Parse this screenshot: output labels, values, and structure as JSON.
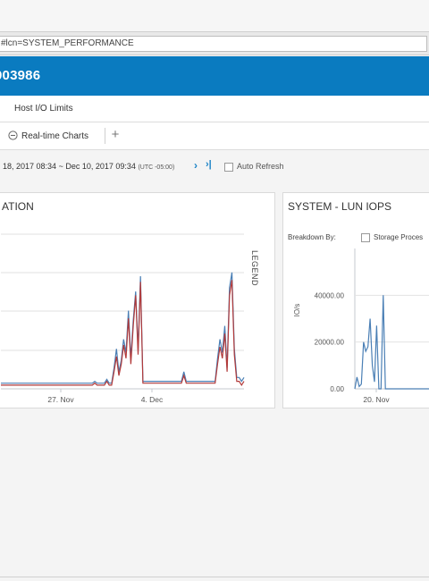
{
  "browser": {
    "url_fragment": "#lcn=SYSTEM_PERFORMANCE"
  },
  "header": {
    "title_fragment": "003986"
  },
  "subnav": {
    "tab_label": "Host I/O Limits"
  },
  "toolbar": {
    "realtime_label": "Real-time Charts",
    "add_label": "+"
  },
  "timerange": {
    "start": "18, 2017 08:34",
    "separator": "~",
    "end": "Dec 10, 2017 09:34",
    "timezone": "(UTC -05:00)",
    "next_symbol": "›",
    "last_symbol": "›|",
    "auto_refresh_label": "Auto Refresh"
  },
  "chart_data": [
    {
      "type": "line",
      "title": "ATION",
      "legend_label": "LEGEND",
      "x_ticks": [
        "27. Nov",
        "4. Dec"
      ],
      "series": [
        {
          "color": "#4a7fb5",
          "values": [
            2,
            2,
            2,
            2,
            2,
            2,
            2,
            2,
            2,
            2,
            2,
            2,
            2,
            2,
            2,
            2,
            2,
            2,
            2,
            2,
            2,
            2,
            2,
            2,
            2,
            2,
            2,
            2,
            2,
            2,
            2,
            2,
            2,
            2,
            2,
            2,
            2,
            2,
            2,
            3,
            2,
            2,
            2,
            2,
            4,
            2,
            2,
            10,
            20,
            8,
            14,
            25,
            18,
            40,
            15,
            35,
            50,
            20,
            58,
            3,
            3,
            3,
            3,
            3,
            3,
            3,
            3,
            3,
            3,
            3,
            3,
            3,
            3,
            3,
            3,
            3,
            8,
            3,
            3,
            3,
            3,
            3,
            3,
            3,
            3,
            3,
            3,
            3,
            3,
            3,
            15,
            25,
            18,
            32,
            10,
            52,
            60,
            20,
            5,
            5,
            3,
            5
          ]
        },
        {
          "color": "#b23a3a",
          "values": [
            1,
            1,
            1,
            1,
            1,
            1,
            1,
            1,
            1,
            1,
            1,
            1,
            1,
            1,
            1,
            1,
            1,
            1,
            1,
            1,
            1,
            1,
            1,
            1,
            1,
            1,
            1,
            1,
            1,
            1,
            1,
            1,
            1,
            1,
            1,
            1,
            1,
            1,
            1,
            2,
            1,
            1,
            1,
            1,
            3,
            1,
            1,
            8,
            16,
            6,
            12,
            22,
            15,
            36,
            12,
            32,
            48,
            17,
            55,
            2,
            2,
            2,
            2,
            2,
            2,
            2,
            2,
            2,
            2,
            2,
            2,
            2,
            2,
            2,
            2,
            2,
            6,
            2,
            2,
            2,
            2,
            2,
            2,
            2,
            2,
            2,
            2,
            2,
            2,
            2,
            12,
            21,
            15,
            28,
            8,
            48,
            56,
            17,
            3,
            3,
            1,
            3
          ]
        }
      ]
    },
    {
      "type": "line",
      "title": "SYSTEM - LUN IOPS",
      "breakdown_label": "Breakdown By:",
      "breakdown_option": "Storage Proces",
      "ylabel": "IO/s",
      "y_ticks": [
        "40000.00",
        "20000.00",
        "0.00"
      ],
      "ylim": [
        0,
        60000
      ],
      "x_ticks": [
        "20. Nov"
      ],
      "series": [
        {
          "color": "#4a7fb5",
          "values": [
            0,
            5000,
            1000,
            2000,
            20000,
            16000,
            18000,
            30000,
            10000,
            3000,
            27000,
            0,
            0,
            40000,
            0,
            0,
            0,
            0,
            0,
            0,
            0,
            0,
            0,
            0,
            0,
            0,
            0,
            0,
            0,
            0,
            0,
            0,
            0,
            0,
            0,
            0,
            0
          ]
        }
      ]
    }
  ]
}
